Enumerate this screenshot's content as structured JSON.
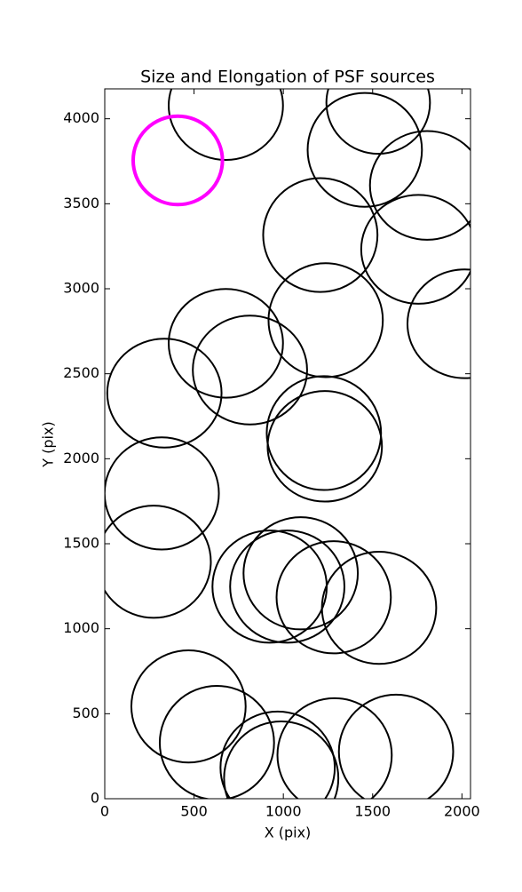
{
  "chart_data": {
    "type": "ellipse",
    "title": "Size and Elongation of PSF sources",
    "x_label": "X (pix)",
    "y_label": "Y (pix)",
    "xlim": [
      0,
      2048
    ],
    "ylim": [
      0,
      4176
    ],
    "xticks": [
      0,
      500,
      1000,
      1500,
      2000
    ],
    "yticks": [
      0,
      500,
      1000,
      1500,
      2000,
      2500,
      3000,
      3500,
      4000
    ],
    "series": [
      {
        "color": "#ff00ff",
        "line_width": 4,
        "x": [
          409
        ],
        "y": [
          3755
        ],
        "width": [
          500
        ],
        "height": [
          520
        ]
      },
      {
        "color": "#000000",
        "line_width": 2,
        "x": [
          678,
          1531,
          1456,
          1805,
          1207,
          1756,
          2015,
          678,
          1237,
          334,
          813,
          1227,
          1232,
          319,
          274,
          923,
          1022,
          1097,
          1282,
          1536,
          469,
          628,
          968,
          1287,
          988,
          1631
        ],
        "y": [
          4078,
          4094,
          3817,
          3608,
          3316,
          3232,
          2794,
          2679,
          2815,
          2386,
          2522,
          2151,
          2073,
          1796,
          1394,
          1248,
          1248,
          1326,
          1185,
          1123,
          543,
          329,
          183,
          256,
          120,
          277
        ],
        "width": [
          640,
          580,
          640,
          640,
          640,
          640,
          640,
          640,
          640,
          640,
          640,
          640,
          640,
          640,
          640,
          640,
          640,
          640,
          640,
          640,
          640,
          640,
          640,
          640,
          640,
          640
        ],
        "height": [
          640,
          600,
          670,
          640,
          670,
          640,
          640,
          640,
          670,
          640,
          640,
          670,
          650,
          660,
          660,
          660,
          660,
          660,
          660,
          660,
          660,
          670,
          660,
          670,
          670,
          670
        ]
      }
    ]
  }
}
